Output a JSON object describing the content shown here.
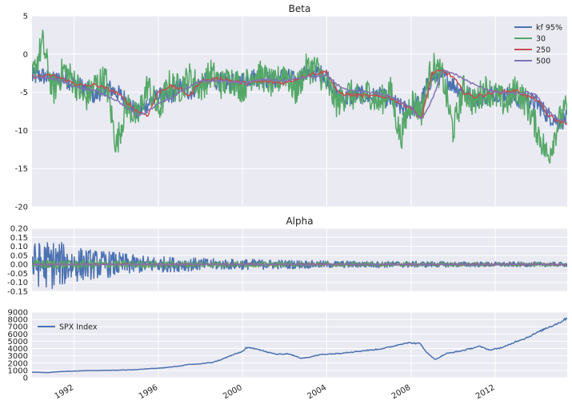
{
  "chart_data": [
    {
      "type": "line",
      "title": "Beta",
      "xlim": [
        "1990-01",
        "2015-06"
      ],
      "ylim": [
        -20,
        5
      ],
      "yticks": [
        "5",
        "0",
        "-5",
        "-10",
        "-15",
        "-20"
      ],
      "grid": true,
      "legend_position": "top-right",
      "series": [
        {
          "name": "kf 95%",
          "color": "#4c72b0",
          "x": [
            "1990-01",
            "1990-07",
            "1991-01",
            "1991-07",
            "1992-01",
            "1992-07",
            "1993-01",
            "1993-07",
            "1994-01",
            "1994-07",
            "1995-01",
            "1995-07",
            "1996-01",
            "1996-07",
            "1997-01",
            "1997-07",
            "1998-01",
            "1998-07",
            "1999-01",
            "1999-07",
            "2000-01",
            "2000-07",
            "2001-01",
            "2001-07",
            "2002-01",
            "2002-07",
            "2003-01",
            "2003-07",
            "2004-01",
            "2004-07",
            "2005-01",
            "2005-07",
            "2006-01",
            "2006-07",
            "2007-01",
            "2007-07",
            "2008-01",
            "2008-07",
            "2009-01",
            "2009-07",
            "2010-01",
            "2010-07",
            "2011-01",
            "2011-07",
            "2012-01",
            "2012-07",
            "2013-01",
            "2013-07",
            "2014-01",
            "2014-07",
            "2015-01",
            "2015-06"
          ],
          "values": [
            -3.0,
            -2.8,
            -3.5,
            -3.2,
            -3.8,
            -4.5,
            -5.5,
            -4.2,
            -5.0,
            -6.0,
            -7.8,
            -6.5,
            -5.5,
            -5.8,
            -4.2,
            -5.0,
            -3.8,
            -3.5,
            -3.6,
            -3.8,
            -3.4,
            -3.0,
            -3.2,
            -3.5,
            -2.8,
            -3.5,
            -2.6,
            -2.4,
            -2.8,
            -5.5,
            -5.8,
            -5.2,
            -5.6,
            -5.5,
            -6.0,
            -7.0,
            -7.5,
            -6.0,
            -3.0,
            -2.8,
            -4.0,
            -5.0,
            -5.8,
            -5.5,
            -5.0,
            -5.2,
            -6.0,
            -5.8,
            -6.5,
            -8.0,
            -8.8,
            -8.5
          ]
        },
        {
          "name": "30",
          "color": "#55a868",
          "x": [
            "1990-01",
            "1990-07",
            "1991-01",
            "1991-07",
            "1992-01",
            "1992-07",
            "1993-01",
            "1993-07",
            "1994-01",
            "1994-07",
            "1995-01",
            "1995-07",
            "1996-01",
            "1996-07",
            "1997-01",
            "1997-07",
            "1998-01",
            "1998-07",
            "1999-01",
            "1999-07",
            "2000-01",
            "2000-07",
            "2001-01",
            "2001-07",
            "2002-01",
            "2002-07",
            "2003-01",
            "2003-07",
            "2004-01",
            "2004-07",
            "2005-01",
            "2005-07",
            "2006-01",
            "2006-07",
            "2007-01",
            "2007-07",
            "2008-01",
            "2008-07",
            "2009-01",
            "2009-07",
            "2010-01",
            "2010-07",
            "2011-01",
            "2011-07",
            "2012-01",
            "2012-07",
            "2013-01",
            "2013-07",
            "2014-01",
            "2014-07",
            "2015-01",
            "2015-06"
          ],
          "values": [
            -3.2,
            1.5,
            -5.0,
            -2.0,
            -3.5,
            -6.0,
            -4.0,
            -3.2,
            -12.0,
            -6.5,
            -8.5,
            -4.0,
            -7.5,
            -4.0,
            -4.5,
            -3.0,
            -4.5,
            -2.5,
            -4.0,
            -3.2,
            -4.5,
            -2.5,
            -3.0,
            -4.2,
            -2.2,
            -5.0,
            -2.0,
            -1.8,
            -4.0,
            -6.5,
            -5.0,
            -6.0,
            -5.0,
            -6.5,
            -4.5,
            -11.0,
            -6.0,
            -7.5,
            -1.5,
            -3.0,
            -10.0,
            -4.5,
            -6.5,
            -4.5,
            -5.5,
            -6.5,
            -4.5,
            -6.5,
            -10.0,
            -13.5,
            -9.0,
            -7.0
          ]
        },
        {
          "name": "250",
          "color": "#c44e52",
          "x": [
            "1990-01",
            "1991-01",
            "1992-01",
            "1992-07",
            "1993-01",
            "1994-01",
            "1995-01",
            "1995-07",
            "1996-01",
            "1996-07",
            "1997-01",
            "1997-07",
            "1998-01",
            "1999-01",
            "2000-01",
            "2001-01",
            "2002-01",
            "2003-01",
            "2003-07",
            "2004-01",
            "2004-07",
            "2005-01",
            "2006-01",
            "2007-01",
            "2007-07",
            "2008-01",
            "2008-07",
            "2009-01",
            "2009-07",
            "2010-01",
            "2010-07",
            "2011-01",
            "2012-01",
            "2013-01",
            "2013-07",
            "2014-01",
            "2014-07",
            "2015-01",
            "2015-06"
          ],
          "values": [
            -3.0,
            -2.8,
            -3.8,
            -4.2,
            -4.0,
            -5.0,
            -7.5,
            -8.0,
            -5.0,
            -4.2,
            -4.5,
            -5.5,
            -3.5,
            -3.2,
            -3.8,
            -3.6,
            -3.8,
            -2.8,
            -2.5,
            -2.3,
            -5.0,
            -5.3,
            -5.5,
            -5.6,
            -6.5,
            -7.0,
            -8.5,
            -2.5,
            -2.2,
            -3.0,
            -5.0,
            -5.6,
            -5.0,
            -4.8,
            -5.5,
            -6.0,
            -8.0,
            -8.8,
            -9.0
          ]
        },
        {
          "name": "500",
          "color": "#8172b2",
          "x": [
            "1990-01",
            "1991-01",
            "1992-01",
            "1993-01",
            "1994-01",
            "1995-01",
            "1995-07",
            "1996-01",
            "1996-07",
            "1997-01",
            "1998-01",
            "1999-01",
            "2000-01",
            "2001-01",
            "2002-01",
            "2003-01",
            "2004-01",
            "2004-07",
            "2005-01",
            "2006-01",
            "2007-01",
            "2008-01",
            "2008-07",
            "2009-01",
            "2009-07",
            "2010-01",
            "2011-01",
            "2012-01",
            "2013-01",
            "2013-07",
            "2014-01",
            "2014-07",
            "2015-01",
            "2015-06"
          ],
          "values": [
            -3.0,
            -3.2,
            -4.2,
            -4.8,
            -6.0,
            -8.0,
            -7.5,
            -6.5,
            -6.0,
            -5.0,
            -3.5,
            -3.5,
            -3.8,
            -3.3,
            -3.5,
            -3.0,
            -2.8,
            -4.0,
            -4.8,
            -5.0,
            -5.5,
            -7.0,
            -8.5,
            -6.0,
            -2.2,
            -2.5,
            -4.0,
            -5.0,
            -5.2,
            -5.0,
            -5.5,
            -7.5,
            -8.5,
            -9.0
          ]
        }
      ]
    },
    {
      "type": "line",
      "title": "Alpha",
      "xlim": [
        "1990-01",
        "2015-06"
      ],
      "ylim": [
        -0.15,
        0.2
      ],
      "yticks": [
        "0.20",
        "0.15",
        "0.10",
        "0.05",
        "0.00",
        "-0.05",
        "-0.10",
        "-0.15"
      ],
      "grid": true,
      "series": [
        {
          "color": "#4c72b0",
          "x": [
            "1990-01",
            "1991-01",
            "1992-01",
            "1993-01",
            "1994-01",
            "1995-01",
            "1996-01",
            "1997-01",
            "1998-01",
            "1999-01",
            "2000-01",
            "2002-01",
            "2004-01",
            "2006-01",
            "2008-01",
            "2010-01",
            "2012-01",
            "2014-01",
            "2015-06"
          ],
          "amplitude": [
            0.12,
            0.14,
            0.1,
            0.08,
            0.07,
            0.05,
            0.045,
            0.04,
            0.035,
            0.03,
            0.03,
            0.025,
            0.02,
            0.018,
            0.018,
            0.015,
            0.014,
            0.013,
            0.012
          ]
        },
        {
          "color": "#55a868",
          "x": [
            "1990-01",
            "1995-01",
            "2000-01",
            "2005-01",
            "2010-01",
            "2015-06"
          ],
          "amplitude": [
            0.025,
            0.02,
            0.015,
            0.012,
            0.01,
            0.01
          ]
        },
        {
          "color": "#c44e52",
          "x": [
            "1990-01",
            "2015-06"
          ],
          "amplitude": [
            0.004,
            0.004
          ]
        },
        {
          "color": "#8172b2",
          "x": [
            "1990-01",
            "2015-06"
          ],
          "amplitude": [
            0.002,
            0.002
          ]
        }
      ]
    },
    {
      "type": "line",
      "xlim": [
        "1990-01",
        "2015-06"
      ],
      "ylim": [
        0,
        9000
      ],
      "yticks": [
        "9000",
        "8000",
        "7000",
        "6000",
        "5000",
        "4000",
        "3000",
        "2000",
        "1000",
        "0"
      ],
      "xticks": [
        "1992",
        "1996",
        "2000",
        "2004",
        "2008",
        "2012"
      ],
      "grid": true,
      "legend_position": "top-left",
      "series": [
        {
          "name": "SPX Index",
          "color": "#4c72b0",
          "x": [
            "1990-01",
            "1990-10",
            "1991-06",
            "1992-06",
            "1993-06",
            "1994-06",
            "1995-01",
            "1995-06",
            "1996-01",
            "1996-06",
            "1997-01",
            "1997-06",
            "1998-01",
            "1998-08",
            "1999-01",
            "1999-06",
            "2000-01",
            "2000-03",
            "2000-09",
            "2001-03",
            "2001-09",
            "2002-03",
            "2002-10",
            "2003-03",
            "2003-10",
            "2004-06",
            "2005-06",
            "2006-06",
            "2007-01",
            "2007-10",
            "2008-06",
            "2008-11",
            "2009-03",
            "2009-09",
            "2010-06",
            "2011-04",
            "2011-10",
            "2012-06",
            "2013-01",
            "2013-06",
            "2014-01",
            "2014-06",
            "2015-01",
            "2015-06"
          ],
          "values": [
            750,
            700,
            850,
            950,
            1000,
            1050,
            1100,
            1200,
            1300,
            1400,
            1600,
            1800,
            1900,
            2100,
            2500,
            3000,
            3600,
            4100,
            4000,
            3500,
            3200,
            3300,
            2700,
            2800,
            3200,
            3300,
            3600,
            3900,
            4200,
            4800,
            4700,
            3200,
            2500,
            3300,
            3700,
            4300,
            3800,
            4200,
            5000,
            5400,
            6200,
            6800,
            7500,
            8200
          ]
        }
      ]
    }
  ]
}
